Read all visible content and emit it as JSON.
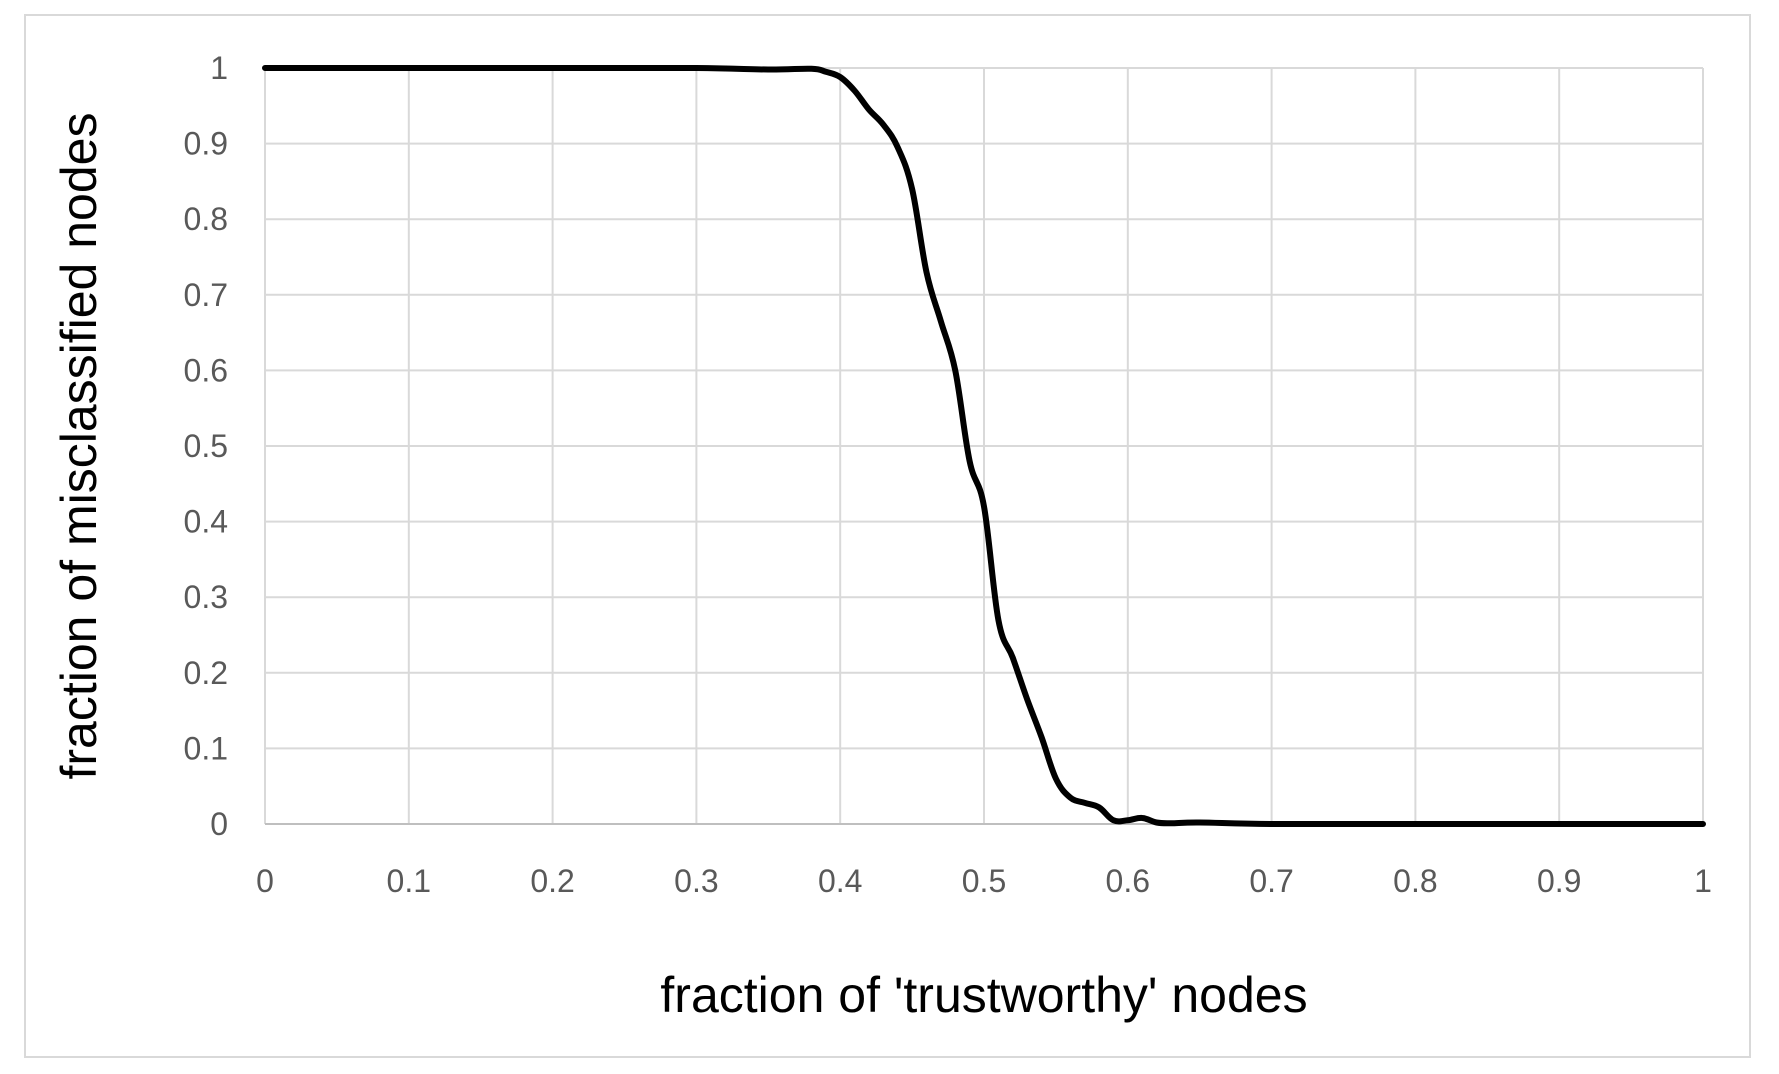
{
  "chart_data": {
    "type": "line",
    "title": "",
    "xlabel": "fraction of 'trustworthy' nodes",
    "ylabel": "fraction of misclassified nodes",
    "xlim": [
      0,
      1
    ],
    "ylim": [
      0,
      1
    ],
    "grid": true,
    "legend": "none",
    "line_color": "#000000",
    "grid_color": "#d9d9d9",
    "x_ticks": [
      "0",
      "0.1",
      "0.2",
      "0.3",
      "0.4",
      "0.5",
      "0.6",
      "0.7",
      "0.8",
      "0.9",
      "1"
    ],
    "y_ticks": [
      "0",
      "0.1",
      "0.2",
      "0.3",
      "0.4",
      "0.5",
      "0.6",
      "0.7",
      "0.8",
      "0.9",
      "1"
    ],
    "series": [
      {
        "x": [
          0,
          0.1,
          0.2,
          0.3,
          0.35,
          0.38,
          0.39,
          0.4,
          0.41,
          0.42,
          0.43,
          0.44,
          0.45,
          0.46,
          0.47,
          0.48,
          0.49,
          0.5,
          0.51,
          0.52,
          0.53,
          0.54,
          0.55,
          0.56,
          0.57,
          0.58,
          0.59,
          0.6,
          0.61,
          0.62,
          0.63,
          0.65,
          0.7,
          0.8,
          0.9,
          1.0
        ],
        "y": [
          1,
          1,
          1,
          1,
          0.998,
          0.999,
          0.995,
          0.988,
          0.97,
          0.945,
          0.925,
          0.895,
          0.84,
          0.73,
          0.665,
          0.6,
          0.48,
          0.42,
          0.27,
          0.22,
          0.165,
          0.115,
          0.06,
          0.035,
          0.028,
          0.022,
          0.005,
          0.005,
          0.008,
          0.002,
          0.001,
          0.002,
          0,
          0,
          0,
          0
        ]
      }
    ]
  }
}
